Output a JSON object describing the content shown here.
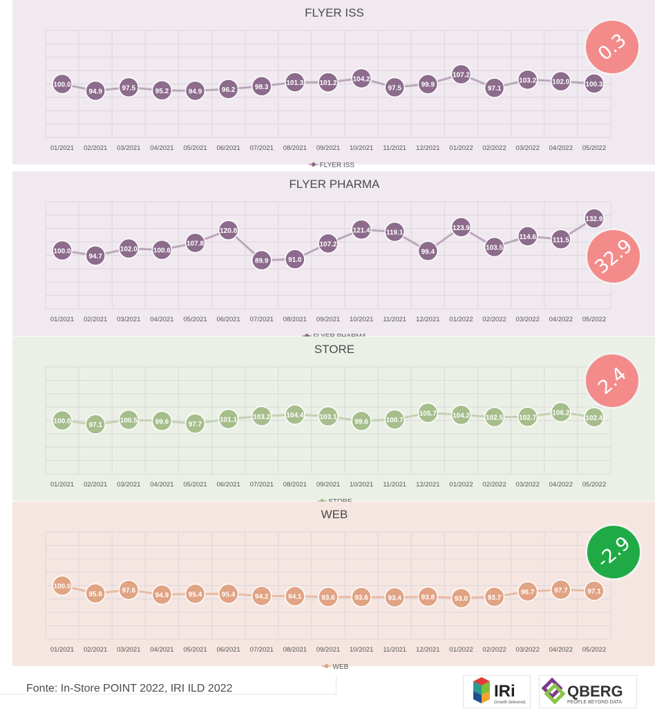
{
  "chart_data": [
    {
      "type": "line",
      "title": "FLYER ISS",
      "categories": [
        "01/2021",
        "02/2021",
        "03/2021",
        "04/2021",
        "05/2021",
        "06/2021",
        "07/2021",
        "08/2021",
        "09/2021",
        "10/2021",
        "11/2021",
        "12/2021",
        "01/2022",
        "02/2022",
        "03/2022",
        "04/2022",
        "05/2022"
      ],
      "series": [
        {
          "name": "FLYER ISS",
          "values": [
            100.0,
            94.9,
            97.5,
            95.2,
            94.9,
            96.2,
            98.3,
            101.3,
            101.2,
            104.2,
            97.5,
            99.9,
            107.2,
            97.1,
            103.2,
            102.0,
            100.3
          ]
        }
      ],
      "value_labels": [
        "100.0",
        "94.9",
        "97.5",
        "95.2",
        "94.9",
        "96.2",
        "98.3",
        "101.3",
        "101.2",
        "104.2",
        "97.5",
        "99.9",
        "107.2",
        "97.1",
        "103.2",
        "102.0",
        "100.3"
      ],
      "ylim": [
        60,
        140
      ],
      "grid": true,
      "legend": "bottom",
      "background": "#f0e9f0",
      "marker_color": "#8c6b8c",
      "line_color": "#b9a8b9",
      "badge": {
        "text": "0.3",
        "color": "#f38b8b"
      }
    },
    {
      "type": "line",
      "title": "FLYER PHARMA",
      "categories": [
        "01/2021",
        "02/2021",
        "03/2021",
        "04/2021",
        "05/2021",
        "06/2021",
        "07/2021",
        "08/2021",
        "09/2021",
        "10/2021",
        "11/2021",
        "12/2021",
        "01/2022",
        "02/2022",
        "03/2022",
        "04/2022",
        "05/2022"
      ],
      "series": [
        {
          "name": "FLYER PHARMA",
          "values": [
            100.0,
            94.7,
            102.0,
            100.6,
            107.8,
            120.8,
            89.9,
            91.0,
            107.2,
            121.4,
            119.1,
            99.4,
            123.9,
            103.5,
            114.6,
            111.5,
            132.9
          ]
        }
      ],
      "value_labels": [
        "100.0",
        "94.7",
        "102.0",
        "100.6",
        "107.8",
        "120.8",
        "89.9",
        "91.0",
        "107.2",
        "121.4",
        "119.1",
        "99.4",
        "123.9",
        "103.5",
        "114.6",
        "111.5",
        "132.9"
      ],
      "ylim": [
        40,
        150
      ],
      "grid": true,
      "legend": "bottom",
      "background": "#f0e9f0",
      "marker_color": "#8c6b8c",
      "line_color": "#b9a8b9",
      "badge": {
        "text": "32.9",
        "color": "#f38b8b"
      }
    },
    {
      "type": "line",
      "title": "STORE",
      "categories": [
        "01/2021",
        "02/2021",
        "03/2021",
        "04/2021",
        "05/2021",
        "06/2021",
        "07/2021",
        "08/2021",
        "09/2021",
        "10/2021",
        "11/2021",
        "12/2021",
        "01/2022",
        "02/2022",
        "03/2022",
        "04/2022",
        "05/2022"
      ],
      "series": [
        {
          "name": "STORE",
          "values": [
            100.0,
            97.1,
            100.5,
            99.6,
            97.7,
            101.1,
            103.2,
            104.4,
            103.1,
            99.6,
            100.7,
            105.7,
            104.2,
            102.5,
            102.7,
            106.2,
            102.4
          ]
        }
      ],
      "value_labels": [
        "100.0",
        "97.1",
        "100.5",
        "99.6",
        "97.7",
        "101.1",
        "103.2",
        "104.4",
        "103.1",
        "99.6",
        "100.7",
        "105.7",
        "104.2",
        "102.5",
        "102.7",
        "106.2",
        "102.4"
      ],
      "ylim": [
        60,
        140
      ],
      "grid": true,
      "legend": "bottom",
      "background": "#ebf0e6",
      "marker_color": "#a6bd8c",
      "line_color": "#c3d1b3",
      "badge": {
        "text": "2.4",
        "color": "#f38b8b"
      }
    },
    {
      "type": "line",
      "title": "WEB",
      "categories": [
        "01/2021",
        "02/2021",
        "03/2021",
        "04/2021",
        "05/2021",
        "06/2021",
        "07/2021",
        "08/2021",
        "09/2021",
        "10/2021",
        "11/2021",
        "12/2021",
        "01/2022",
        "02/2022",
        "03/2022",
        "04/2022",
        "05/2022"
      ],
      "series": [
        {
          "name": "WEB",
          "values": [
            100.0,
            95.6,
            97.6,
            94.9,
            95.4,
            95.4,
            94.2,
            94.1,
            93.6,
            93.6,
            93.4,
            93.8,
            93.0,
            93.7,
            96.7,
            97.7,
            97.1
          ]
        }
      ],
      "value_labels": [
        "100.0",
        "95.6",
        "97.6",
        "94.9",
        "95.4",
        "95.4",
        "94.2",
        "94.1",
        "93.6",
        "93.6",
        "93.4",
        "93.8",
        "93.0",
        "93.7",
        "96.7",
        "97.7",
        "97.1"
      ],
      "ylim": [
        70,
        130
      ],
      "grid": true,
      "legend": "bottom",
      "background": "#f5e6e1",
      "marker_color": "#e0a383",
      "line_color": "#e8bba3",
      "badge": {
        "text": "-2.9",
        "color": "#1faa45"
      }
    }
  ],
  "footer": {
    "source": "Fonte: In-Store POINT 2022, IRI ILD 2022",
    "iri_logo_text": "IRi",
    "iri_tagline": "Growth delivered.",
    "qberg_logo_text": "QBERG",
    "qberg_tagline": "PEOPLE BEYOND DATA"
  }
}
